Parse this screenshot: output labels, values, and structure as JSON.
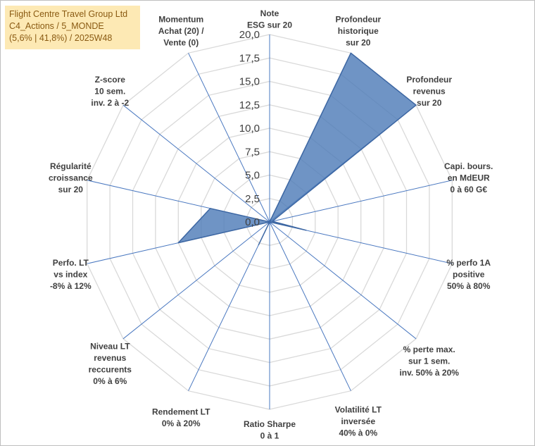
{
  "info_box": {
    "line1": "Flight Centre Travel Group Ltd",
    "line2": "C4_Actions / 5_MONDE",
    "line3": "(5,6% | 41,8%) / 2025W48"
  },
  "colors": {
    "fill": "#4f7db8",
    "stroke": "#3d67a3",
    "grid": "#d9d9d9",
    "spokes": "#4a78c0",
    "info_box_bg": "#fde9b4",
    "info_box_text": "#8a5a12"
  },
  "chart_data": {
    "type": "radar",
    "rmin": 0,
    "rmax": 20,
    "tick_step": 2.5,
    "tick_labels": [
      "0,0",
      "2,5",
      "5,0",
      "7,5",
      "10,0",
      "12,5",
      "15,0",
      "17,5",
      "20,0"
    ],
    "axes": [
      {
        "label": [
          "Note",
          "ESG sur 20"
        ],
        "value": 0
      },
      {
        "label": [
          "Profondeur",
          "historique",
          "sur 20"
        ],
        "value": 20
      },
      {
        "label": [
          "Profondeur",
          "revenus",
          "sur 20"
        ],
        "value": 20
      },
      {
        "label": [
          "Capi. bours.",
          "en MdEUR",
          "0 à 60 G€"
        ],
        "value": 0.3
      },
      {
        "label": [
          "% perfo 1A",
          "positive",
          "50% à 80%"
        ],
        "value": 4
      },
      {
        "label": [
          "% perte max.",
          "sur 1 sem.",
          "inv. 50% à 20%"
        ],
        "value": 0
      },
      {
        "label": [
          "Volatilité LT",
          "inversée",
          "40% à 0%"
        ],
        "value": 0
      },
      {
        "label": [
          "Ratio Sharpe",
          "0 à 1"
        ],
        "value": 0
      },
      {
        "label": [
          "Rendement LT",
          "0% à 20%"
        ],
        "value": 2.7
      },
      {
        "label": [
          "Niveau LT",
          "revenus",
          "reccurents",
          "0% à 6%"
        ],
        "value": 0
      },
      {
        "label": [
          "Perfo. LT",
          "vs index",
          "-8% à 12%"
        ],
        "value": 10
      },
      {
        "label": [
          "Régularité",
          "croissance",
          "sur 20"
        ],
        "value": 6.5
      },
      {
        "label": [
          "Z-score",
          "10 sem.",
          "inv. 2 à -2"
        ],
        "value": 0
      },
      {
        "label": [
          "Momentum",
          "Achat (20) /",
          "Vente (0)"
        ],
        "value": 0
      }
    ]
  }
}
